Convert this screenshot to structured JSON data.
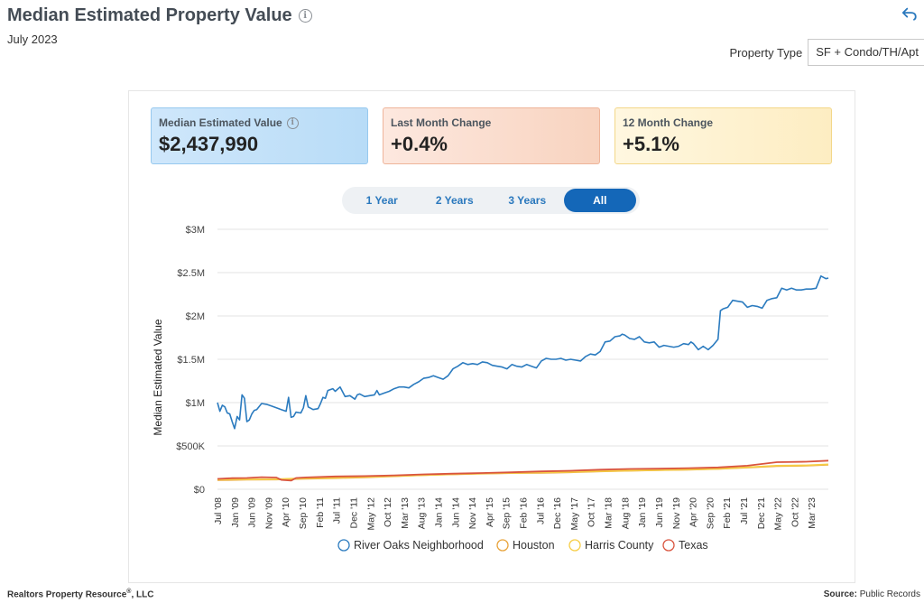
{
  "header": {
    "title": "Median Estimated Property Value",
    "date": "July 2023",
    "property_type_label": "Property Type",
    "property_type_value": "SF + Condo/TH/Apt"
  },
  "stats": [
    {
      "label": "Median Estimated Value",
      "value": "$2,437,990"
    },
    {
      "label": "Last Month Change",
      "value": "+0.4%"
    },
    {
      "label": "12 Month Change",
      "value": "+5.1%"
    }
  ],
  "range_buttons": [
    "1 Year",
    "2 Years",
    "3 Years",
    "All"
  ],
  "range_selected": "All",
  "footer": {
    "company": "Realtors Property Resource",
    "company_suffix": ", LLC",
    "registered": "®",
    "source_label": "Source:",
    "source_value": "Public Records"
  },
  "colors": {
    "river_oaks": "#2b7bbf",
    "houston": "#e8a33a",
    "harris": "#f6cd45",
    "texas": "#d9543e",
    "accent": "#1467b8"
  },
  "chart_data": {
    "type": "line",
    "title": "Median Estimated Property Value",
    "ylabel": "Median Estimated Value",
    "xlabel": "",
    "ylim": [
      0,
      3000000
    ],
    "yticks": [
      0,
      500000,
      1000000,
      1500000,
      2000000,
      2500000,
      3000000
    ],
    "ytick_labels": [
      "$0",
      "$500K",
      "$1M",
      "$1.5M",
      "$2M",
      "$2.5M",
      "$3M"
    ],
    "x_range": [
      "2008-07",
      "2023-07"
    ],
    "xtick_labels": [
      "Jul '08",
      "Jan '09",
      "Jun '09",
      "Nov '09",
      "Apr '10",
      "Sep '10",
      "Feb '11",
      "Jul '11",
      "Dec '11",
      "May '12",
      "Oct '12",
      "Mar '13",
      "Aug '13",
      "Jan '14",
      "Jun '14",
      "Nov '14",
      "Apr '15",
      "Sep '15",
      "Feb '16",
      "Jul '16",
      "Dec '16",
      "May '17",
      "Oct '17",
      "Mar '18",
      "Aug '18",
      "Jan '19",
      "Jun '19",
      "Nov '19",
      "Apr '20",
      "Sep '20",
      "Feb '21",
      "Jul '21",
      "Dec '21",
      "May '22",
      "Oct '22",
      "Mar '23"
    ],
    "legend_position": "bottom",
    "series": [
      {
        "name": "River Oaks Neighborhood",
        "color": "#2b7bbf",
        "points": [
          [
            0,
            1000000
          ],
          [
            1,
            900000
          ],
          [
            2,
            970000
          ],
          [
            3,
            950000
          ],
          [
            4,
            880000
          ],
          [
            5,
            870000
          ],
          [
            6,
            780000
          ],
          [
            7,
            700000
          ],
          [
            8,
            840000
          ],
          [
            9,
            800000
          ],
          [
            10,
            1090000
          ],
          [
            11,
            1050000
          ],
          [
            12,
            780000
          ],
          [
            13,
            800000
          ],
          [
            14,
            870000
          ],
          [
            15,
            910000
          ],
          [
            16,
            920000
          ],
          [
            18,
            990000
          ],
          [
            20,
            980000
          ],
          [
            22,
            960000
          ],
          [
            24,
            940000
          ],
          [
            26,
            920000
          ],
          [
            28,
            900000
          ],
          [
            29,
            1060000
          ],
          [
            30,
            830000
          ],
          [
            31,
            840000
          ],
          [
            32,
            890000
          ],
          [
            34,
            880000
          ],
          [
            35,
            940000
          ],
          [
            36,
            1080000
          ],
          [
            37,
            950000
          ],
          [
            39,
            920000
          ],
          [
            41,
            930000
          ],
          [
            42,
            990000
          ],
          [
            43,
            1060000
          ],
          [
            44,
            1050000
          ],
          [
            45,
            1140000
          ],
          [
            47,
            1160000
          ],
          [
            48,
            1130000
          ],
          [
            50,
            1180000
          ],
          [
            52,
            1070000
          ],
          [
            54,
            1080000
          ],
          [
            56,
            1040000
          ],
          [
            57,
            1090000
          ],
          [
            58,
            1100000
          ],
          [
            60,
            1070000
          ],
          [
            62,
            1080000
          ],
          [
            64,
            1090000
          ],
          [
            65,
            1140000
          ],
          [
            66,
            1090000
          ],
          [
            68,
            1110000
          ],
          [
            70,
            1130000
          ],
          [
            72,
            1160000
          ],
          [
            74,
            1180000
          ],
          [
            76,
            1180000
          ],
          [
            78,
            1170000
          ],
          [
            80,
            1210000
          ],
          [
            82,
            1240000
          ],
          [
            84,
            1280000
          ],
          [
            86,
            1290000
          ],
          [
            88,
            1310000
          ],
          [
            90,
            1290000
          ],
          [
            92,
            1270000
          ],
          [
            94,
            1310000
          ],
          [
            96,
            1390000
          ],
          [
            98,
            1420000
          ],
          [
            100,
            1460000
          ],
          [
            102,
            1440000
          ],
          [
            104,
            1450000
          ],
          [
            106,
            1440000
          ],
          [
            108,
            1470000
          ],
          [
            110,
            1460000
          ],
          [
            112,
            1430000
          ],
          [
            114,
            1420000
          ],
          [
            116,
            1410000
          ],
          [
            118,
            1390000
          ],
          [
            120,
            1440000
          ],
          [
            122,
            1420000
          ],
          [
            124,
            1410000
          ],
          [
            126,
            1440000
          ],
          [
            128,
            1420000
          ],
          [
            130,
            1400000
          ],
          [
            132,
            1480000
          ],
          [
            134,
            1510000
          ],
          [
            136,
            1500000
          ],
          [
            138,
            1500000
          ],
          [
            140,
            1510000
          ],
          [
            142,
            1490000
          ],
          [
            144,
            1500000
          ],
          [
            146,
            1490000
          ],
          [
            148,
            1480000
          ],
          [
            150,
            1530000
          ],
          [
            152,
            1560000
          ],
          [
            154,
            1550000
          ],
          [
            156,
            1590000
          ],
          [
            158,
            1700000
          ],
          [
            160,
            1710000
          ],
          [
            162,
            1760000
          ],
          [
            164,
            1770000
          ],
          [
            165,
            1790000
          ],
          [
            166,
            1780000
          ],
          [
            168,
            1740000
          ],
          [
            170,
            1730000
          ],
          [
            172,
            1760000
          ],
          [
            174,
            1700000
          ],
          [
            176,
            1690000
          ],
          [
            178,
            1700000
          ],
          [
            180,
            1640000
          ],
          [
            182,
            1660000
          ],
          [
            184,
            1650000
          ],
          [
            186,
            1640000
          ],
          [
            188,
            1650000
          ],
          [
            190,
            1680000
          ],
          [
            192,
            1670000
          ],
          [
            193,
            1700000
          ],
          [
            194,
            1680000
          ],
          [
            196,
            1610000
          ],
          [
            198,
            1650000
          ],
          [
            200,
            1610000
          ],
          [
            202,
            1660000
          ],
          [
            204,
            1730000
          ],
          [
            205,
            2060000
          ],
          [
            206,
            2080000
          ],
          [
            208,
            2100000
          ],
          [
            210,
            2180000
          ],
          [
            212,
            2170000
          ],
          [
            214,
            2160000
          ],
          [
            216,
            2100000
          ],
          [
            218,
            2120000
          ],
          [
            220,
            2110000
          ],
          [
            222,
            2090000
          ],
          [
            224,
            2180000
          ],
          [
            226,
            2200000
          ],
          [
            228,
            2210000
          ],
          [
            230,
            2320000
          ],
          [
            232,
            2300000
          ],
          [
            234,
            2320000
          ],
          [
            236,
            2300000
          ],
          [
            238,
            2300000
          ],
          [
            240,
            2310000
          ],
          [
            242,
            2310000
          ],
          [
            244,
            2320000
          ],
          [
            246,
            2460000
          ],
          [
            248,
            2430000
          ],
          [
            249,
            2438000
          ]
        ]
      },
      {
        "name": "Houston",
        "color": "#e8a33a",
        "points": [
          [
            0,
            105000
          ],
          [
            12,
            110000
          ],
          [
            24,
            112000
          ],
          [
            30,
            118000
          ],
          [
            36,
            122000
          ],
          [
            48,
            128000
          ],
          [
            60,
            138000
          ],
          [
            72,
            150000
          ],
          [
            84,
            162000
          ],
          [
            96,
            172000
          ],
          [
            108,
            180000
          ],
          [
            120,
            186000
          ],
          [
            132,
            190000
          ],
          [
            144,
            196000
          ],
          [
            156,
            206000
          ],
          [
            168,
            214000
          ],
          [
            180,
            220000
          ],
          [
            192,
            226000
          ],
          [
            204,
            234000
          ],
          [
            216,
            250000
          ],
          [
            228,
            268000
          ],
          [
            240,
            272000
          ],
          [
            249,
            282000
          ]
        ]
      },
      {
        "name": "Harris County",
        "color": "#f6cd45",
        "points": [
          [
            0,
            112000
          ],
          [
            12,
            114000
          ],
          [
            24,
            116000
          ],
          [
            30,
            122000
          ],
          [
            36,
            126000
          ],
          [
            48,
            132000
          ],
          [
            60,
            142000
          ],
          [
            72,
            152000
          ],
          [
            84,
            164000
          ],
          [
            96,
            174000
          ],
          [
            108,
            182000
          ],
          [
            120,
            188000
          ],
          [
            132,
            194000
          ],
          [
            144,
            200000
          ],
          [
            156,
            208000
          ],
          [
            168,
            216000
          ],
          [
            180,
            222000
          ],
          [
            192,
            228000
          ],
          [
            204,
            236000
          ],
          [
            216,
            254000
          ],
          [
            228,
            272000
          ],
          [
            240,
            276000
          ],
          [
            249,
            288000
          ]
        ]
      },
      {
        "name": "Texas",
        "color": "#d9543e",
        "points": [
          [
            0,
            120000
          ],
          [
            6,
            128000
          ],
          [
            12,
            130000
          ],
          [
            18,
            140000
          ],
          [
            24,
            135000
          ],
          [
            26,
            108000
          ],
          [
            30,
            100000
          ],
          [
            32,
            130000
          ],
          [
            36,
            136000
          ],
          [
            48,
            148000
          ],
          [
            60,
            152000
          ],
          [
            72,
            160000
          ],
          [
            84,
            172000
          ],
          [
            96,
            180000
          ],
          [
            108,
            188000
          ],
          [
            120,
            196000
          ],
          [
            132,
            206000
          ],
          [
            144,
            214000
          ],
          [
            156,
            226000
          ],
          [
            168,
            234000
          ],
          [
            180,
            238000
          ],
          [
            192,
            244000
          ],
          [
            204,
            252000
          ],
          [
            216,
            272000
          ],
          [
            228,
            312000
          ],
          [
            240,
            318000
          ],
          [
            249,
            330000
          ]
        ]
      }
    ]
  }
}
